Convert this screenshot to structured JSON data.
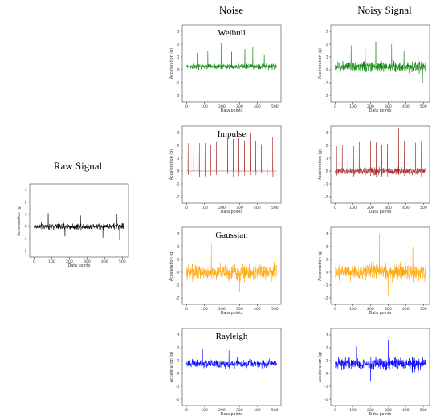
{
  "headers": {
    "noise": "Noise",
    "noisy_signal": "Noisy Signal",
    "raw_signal": "Raw Signal"
  },
  "chart_data": [
    {
      "id": "raw",
      "type": "line",
      "title": "",
      "xlabel": "Data points",
      "ylabel": "Acceleration (g)",
      "xlim": [
        -25,
        535
      ],
      "ylim": [
        -2.5,
        3.5
      ],
      "xticks": [
        0,
        100,
        200,
        300,
        400,
        500
      ],
      "yticks": [
        -2,
        -1,
        0,
        1,
        2,
        3
      ],
      "color": "#000000",
      "n_points": 512,
      "series_profile": {
        "baseline": 0.0,
        "amplitude": 0.35,
        "spikes": [
          [
            80,
            1.1
          ],
          [
            175,
            -0.8
          ],
          [
            265,
            0.9
          ],
          [
            390,
            -0.9
          ],
          [
            470,
            1.05
          ],
          [
            485,
            -1.1
          ]
        ]
      }
    },
    {
      "id": "weibull-noise",
      "type": "line",
      "title": "Weibull",
      "xlabel": "Data points",
      "ylabel": "Acceleration (g)",
      "xlim": [
        -25,
        535
      ],
      "ylim": [
        -2.5,
        3.5
      ],
      "xticks": [
        0,
        100,
        200,
        300,
        400,
        500
      ],
      "yticks": [
        -2,
        -1,
        0,
        1,
        2,
        3
      ],
      "color": "#008000",
      "n_points": 512,
      "series_profile": {
        "baseline": 0.25,
        "amplitude": 0.3,
        "spikes": [
          [
            60,
            1.3
          ],
          [
            120,
            1.5
          ],
          [
            195,
            2.1
          ],
          [
            255,
            1.4
          ],
          [
            330,
            1.6
          ],
          [
            375,
            1.8
          ],
          [
            440,
            1.2
          ]
        ]
      }
    },
    {
      "id": "weibull-noisy",
      "type": "line",
      "title": "",
      "xlabel": "Data points",
      "ylabel": "Acceleration (g)",
      "xlim": [
        -25,
        535
      ],
      "ylim": [
        -2.5,
        3.5
      ],
      "xticks": [
        0,
        100,
        200,
        300,
        400,
        500
      ],
      "yticks": [
        -2,
        -1,
        0,
        1,
        2,
        3
      ],
      "color": "#008000",
      "n_points": 512,
      "series_profile": {
        "baseline": 0.25,
        "amplitude": 0.55,
        "spikes": [
          [
            90,
            1.9
          ],
          [
            170,
            1.6
          ],
          [
            230,
            2.2
          ],
          [
            320,
            2.0
          ],
          [
            390,
            1.5
          ],
          [
            470,
            1.7
          ],
          [
            495,
            -1.0
          ]
        ]
      }
    },
    {
      "id": "impulse-noise",
      "type": "line",
      "title": "Impulse",
      "xlabel": "Data points",
      "ylabel": "Acceleration (g)",
      "xlim": [
        -25,
        535
      ],
      "ylim": [
        -2.5,
        3.5
      ],
      "xticks": [
        0,
        100,
        200,
        300,
        400,
        500
      ],
      "yticks": [
        -2,
        -1,
        0,
        1,
        2,
        3
      ],
      "color": "#a52a2a",
      "n_points": 512,
      "series_profile": {
        "baseline": 0.0,
        "amplitude": 0.02,
        "impulse_period": 32,
        "impulse_height": 2.4,
        "impulse_max": 3.0
      }
    },
    {
      "id": "impulse-noisy",
      "type": "line",
      "title": "",
      "xlabel": "Data points",
      "ylabel": "Acceleration (g)",
      "xlim": [
        -25,
        535
      ],
      "ylim": [
        -2.5,
        3.5
      ],
      "xticks": [
        0,
        100,
        200,
        300,
        400,
        500
      ],
      "yticks": [
        -2,
        -1,
        0,
        1,
        2,
        3
      ],
      "color": "#a52a2a",
      "n_points": 512,
      "series_profile": {
        "baseline": 0.0,
        "amplitude": 0.4,
        "impulse_period": 32,
        "impulse_height": 2.2,
        "impulse_max": 3.3
      }
    },
    {
      "id": "gaussian-noise",
      "type": "line",
      "title": "Gaussian",
      "xlabel": "Data points",
      "ylabel": "Acceleration (g)",
      "xlim": [
        -25,
        535
      ],
      "ylim": [
        -2.5,
        3.5
      ],
      "xticks": [
        0,
        100,
        200,
        300,
        400,
        500
      ],
      "yticks": [
        -2,
        -1,
        0,
        1,
        2,
        3
      ],
      "color": "#ffa500",
      "n_points": 512,
      "series_profile": {
        "baseline": 0.0,
        "amplitude": 0.85,
        "spikes": [
          [
            140,
            2.2
          ],
          [
            300,
            -1.5
          ]
        ]
      }
    },
    {
      "id": "gaussian-noisy",
      "type": "line",
      "title": "",
      "xlabel": "Data points",
      "ylabel": "Acceleration (g)",
      "xlim": [
        -25,
        535
      ],
      "ylim": [
        -2.5,
        3.5
      ],
      "xticks": [
        0,
        100,
        200,
        300,
        400,
        500
      ],
      "yticks": [
        -2,
        -1,
        0,
        1,
        2,
        3
      ],
      "color": "#ffa500",
      "n_points": 512,
      "series_profile": {
        "baseline": 0.0,
        "amplitude": 0.9,
        "spikes": [
          [
            250,
            3.0
          ],
          [
            300,
            -1.8
          ],
          [
            440,
            2.0
          ]
        ]
      }
    },
    {
      "id": "rayleigh-noise",
      "type": "line",
      "title": "Rayleigh",
      "xlabel": "Data points",
      "ylabel": "Acceleration (g)",
      "xlim": [
        -25,
        535
      ],
      "ylim": [
        -2.5,
        3.5
      ],
      "xticks": [
        0,
        100,
        200,
        300,
        400,
        500
      ],
      "yticks": [
        -2,
        -1,
        0,
        1,
        2,
        3
      ],
      "color": "#0000ff",
      "n_points": 512,
      "series_profile": {
        "baseline": 0.75,
        "amplitude": 0.45,
        "spikes": [
          [
            90,
            1.9
          ],
          [
            240,
            1.8
          ],
          [
            410,
            1.7
          ]
        ]
      }
    },
    {
      "id": "rayleigh-noisy",
      "type": "line",
      "title": "",
      "xlabel": "Data points",
      "ylabel": "Acceleration (g)",
      "xlim": [
        -25,
        535
      ],
      "ylim": [
        -2.5,
        3.5
      ],
      "xticks": [
        0,
        100,
        200,
        300,
        400,
        500
      ],
      "yticks": [
        -2,
        -1,
        0,
        1,
        2,
        3
      ],
      "color": "#0000ff",
      "n_points": 512,
      "series_profile": {
        "baseline": 0.75,
        "amplitude": 0.65,
        "spikes": [
          [
            300,
            2.6
          ],
          [
            120,
            2.1
          ],
          [
            470,
            -0.8
          ],
          [
            200,
            -0.6
          ]
        ]
      }
    }
  ]
}
